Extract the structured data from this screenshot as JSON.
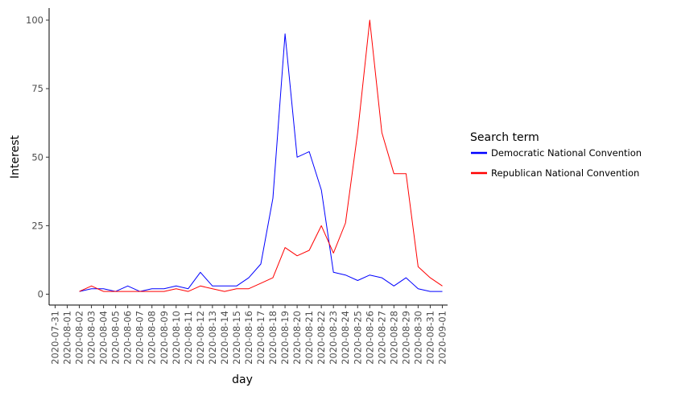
{
  "chart_data": {
    "type": "line",
    "xlabel": "day",
    "ylabel": "Interest",
    "ylim": [
      -3,
      105
    ],
    "y_ticks": [
      0,
      25,
      50,
      75,
      100
    ],
    "x_tick_labels": [
      "2020-07-31",
      "2020-08-01",
      "2020-08-02",
      "2020-08-03",
      "2020-08-04",
      "2020-08-05",
      "2020-08-06",
      "2020-08-07",
      "2020-08-08",
      "2020-08-09",
      "2020-08-10",
      "2020-08-11",
      "2020-08-12",
      "2020-08-13",
      "2020-08-14",
      "2020-08-15",
      "2020-08-16",
      "2020-08-17",
      "2020-08-18",
      "2020-08-19",
      "2020-08-20",
      "2020-08-21",
      "2020-08-22",
      "2020-08-23",
      "2020-08-24",
      "2020-08-25",
      "2020-08-26",
      "2020-08-27",
      "2020-08-28",
      "2020-08-29",
      "2020-08-30",
      "2020-08-31",
      "2020-09-01"
    ],
    "x": [
      "2020-08-02",
      "2020-08-03",
      "2020-08-04",
      "2020-08-05",
      "2020-08-06",
      "2020-08-07",
      "2020-08-08",
      "2020-08-09",
      "2020-08-10",
      "2020-08-11",
      "2020-08-12",
      "2020-08-13",
      "2020-08-14",
      "2020-08-15",
      "2020-08-16",
      "2020-08-17",
      "2020-08-18",
      "2020-08-19",
      "2020-08-20",
      "2020-08-21",
      "2020-08-22",
      "2020-08-23",
      "2020-08-24",
      "2020-08-25",
      "2020-08-26",
      "2020-08-27",
      "2020-08-28",
      "2020-08-29",
      "2020-08-30",
      "2020-08-31",
      "2020-09-01"
    ],
    "legend_title": "Search term",
    "legend_position": "right",
    "grid": false,
    "series": [
      {
        "name": "Democratic National Convention",
        "color": "#0000ff",
        "values": [
          1,
          2,
          2,
          1,
          3,
          1,
          2,
          2,
          3,
          2,
          8,
          3,
          3,
          3,
          6,
          11,
          35,
          95,
          50,
          52,
          38,
          8,
          7,
          5,
          7,
          6,
          3,
          6,
          2,
          1,
          1
        ]
      },
      {
        "name": "Republican National Convention",
        "color": "#ff0000",
        "values": [
          1,
          3,
          1,
          1,
          1,
          1,
          1,
          1,
          2,
          1,
          3,
          2,
          1,
          2,
          2,
          4,
          6,
          17,
          14,
          16,
          25,
          15,
          26,
          59,
          100,
          59,
          44,
          44,
          10,
          6,
          3
        ]
      }
    ]
  }
}
